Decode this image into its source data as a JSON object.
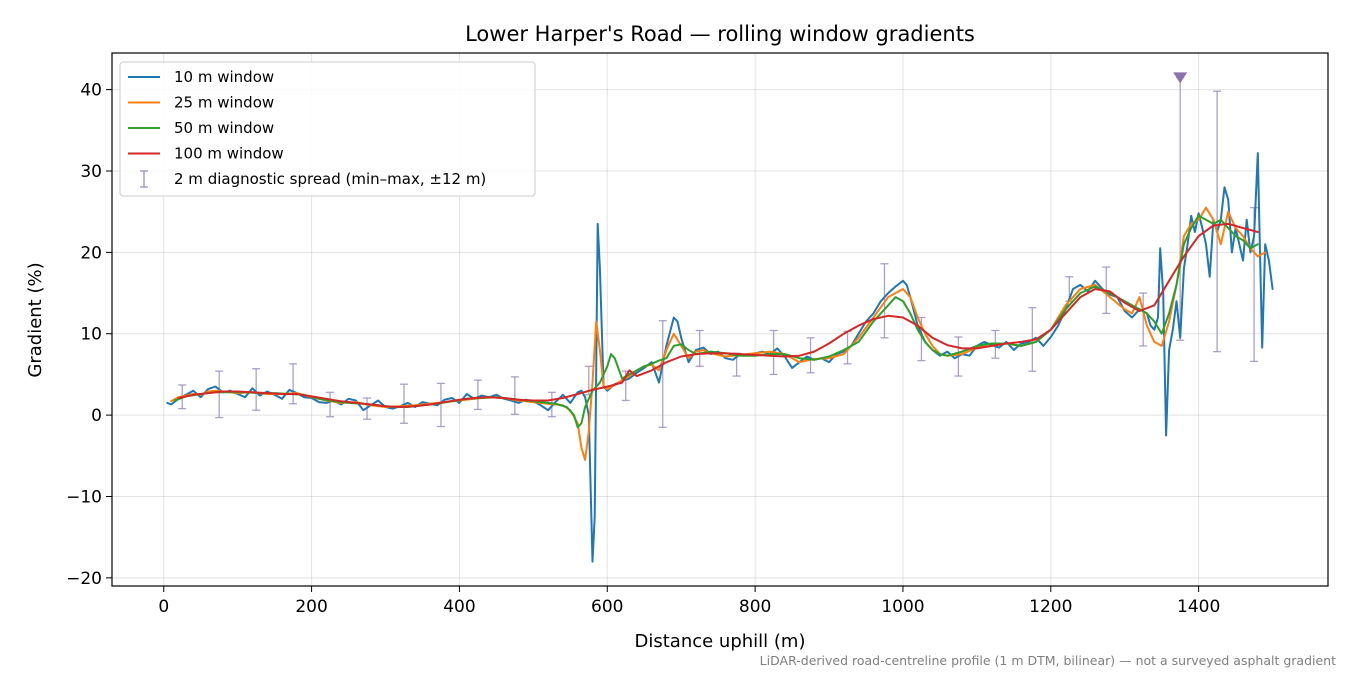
{
  "chart_data": {
    "type": "line",
    "title": "Lower Harper's Road — rolling window gradients",
    "xlabel": "Distance uphill (m)",
    "ylabel": "Gradient (%)",
    "xlim": [
      -70,
      1575
    ],
    "ylim": [
      -21,
      44.5
    ],
    "xticks": [
      0,
      200,
      400,
      600,
      800,
      1000,
      1200,
      1400
    ],
    "yticks": [
      -20,
      -10,
      0,
      10,
      20,
      30,
      40
    ],
    "ytick_labels": [
      "−20",
      "−10",
      "0",
      "10",
      "20",
      "30",
      "40"
    ],
    "grid": true,
    "legend_position": "upper-left",
    "footnote": "LiDAR-derived road-centreline profile (1 m DTM, bilinear) — not a surveyed asphalt gradient",
    "series": [
      {
        "name": "10 m window",
        "color": "#1f77b4",
        "x": [
          5,
          10,
          20,
          30,
          40,
          50,
          60,
          70,
          80,
          90,
          100,
          110,
          120,
          130,
          140,
          150,
          160,
          170,
          180,
          190,
          200,
          210,
          220,
          230,
          240,
          250,
          260,
          270,
          280,
          290,
          300,
          310,
          320,
          330,
          340,
          350,
          360,
          370,
          380,
          390,
          400,
          410,
          420,
          430,
          440,
          450,
          460,
          470,
          480,
          490,
          500,
          510,
          520,
          530,
          540,
          550,
          560,
          565,
          570,
          575,
          580,
          583,
          587,
          590,
          595,
          600,
          610,
          620,
          630,
          640,
          650,
          660,
          670,
          680,
          690,
          695,
          700,
          710,
          720,
          730,
          740,
          750,
          760,
          770,
          780,
          790,
          800,
          810,
          820,
          830,
          840,
          850,
          860,
          870,
          880,
          890,
          900,
          910,
          920,
          930,
          940,
          950,
          960,
          970,
          980,
          990,
          1000,
          1005,
          1010,
          1020,
          1030,
          1040,
          1050,
          1060,
          1070,
          1080,
          1090,
          1100,
          1110,
          1120,
          1130,
          1140,
          1150,
          1160,
          1170,
          1180,
          1190,
          1200,
          1210,
          1220,
          1230,
          1240,
          1250,
          1260,
          1270,
          1280,
          1290,
          1300,
          1310,
          1320,
          1330,
          1335,
          1340,
          1345,
          1348,
          1352,
          1356,
          1360,
          1365,
          1370,
          1375,
          1380,
          1385,
          1390,
          1395,
          1400,
          1405,
          1410,
          1415,
          1420,
          1425,
          1430,
          1435,
          1440,
          1445,
          1450,
          1455,
          1460,
          1465,
          1470,
          1475,
          1480,
          1483,
          1486,
          1490,
          1495,
          1500
        ],
        "values": [
          1.5,
          1.3,
          2.0,
          2.5,
          3.0,
          2.2,
          3.2,
          3.5,
          2.8,
          3.0,
          2.6,
          2.2,
          3.3,
          2.4,
          2.9,
          2.5,
          2.0,
          3.1,
          2.7,
          2.2,
          2.1,
          1.6,
          1.5,
          1.8,
          1.3,
          2.0,
          1.8,
          0.6,
          1.2,
          1.8,
          1.0,
          0.8,
          1.1,
          1.5,
          1.0,
          1.6,
          1.4,
          1.2,
          1.9,
          2.1,
          1.5,
          2.6,
          2.0,
          2.4,
          2.2,
          2.5,
          2.0,
          1.8,
          1.5,
          1.9,
          1.7,
          1.2,
          0.6,
          1.6,
          2.5,
          1.5,
          2.8,
          3.0,
          2.2,
          0.0,
          -18.0,
          -12.5,
          23.5,
          18.0,
          3.5,
          3.0,
          3.8,
          4.2,
          4.5,
          5.2,
          5.8,
          6.5,
          4.0,
          8.5,
          12.0,
          11.5,
          9.5,
          6.5,
          8.0,
          8.3,
          7.5,
          7.8,
          7.0,
          6.8,
          7.5,
          7.3,
          7.6,
          7.8,
          7.5,
          8.2,
          7.2,
          5.8,
          6.5,
          7.2,
          6.8,
          7.0,
          6.5,
          7.5,
          7.8,
          8.5,
          10.0,
          11.5,
          12.5,
          14.0,
          15.0,
          15.8,
          16.5,
          16.0,
          14.5,
          11.0,
          9.0,
          8.0,
          7.3,
          7.8,
          7.0,
          7.5,
          7.3,
          8.5,
          9.0,
          8.6,
          8.3,
          9.0,
          8.0,
          8.8,
          9.0,
          9.5,
          8.5,
          9.6,
          11.0,
          13.0,
          15.5,
          16.0,
          15.2,
          16.5,
          15.5,
          14.8,
          14.5,
          12.8,
          12.0,
          13.0,
          12.5,
          11.0,
          10.5,
          12.0,
          20.5,
          15.0,
          -2.5,
          8.0,
          10.5,
          14.0,
          9.5,
          18.0,
          21.0,
          24.5,
          22.5,
          24.8,
          23.0,
          21.0,
          17.0,
          24.0,
          22.5,
          24.0,
          28.0,
          26.5,
          20.0,
          23.0,
          21.0,
          19.0,
          24.0,
          20.0,
          22.0,
          32.2,
          20.0,
          8.3,
          21.0,
          19.0,
          15.5
        ]
      },
      {
        "name": "25 m window",
        "color": "#ff7f0e",
        "x": [
          10,
          20,
          30,
          40,
          50,
          60,
          70,
          80,
          90,
          100,
          120,
          140,
          160,
          180,
          200,
          220,
          240,
          260,
          280,
          300,
          320,
          340,
          360,
          380,
          400,
          420,
          440,
          460,
          480,
          500,
          520,
          540,
          550,
          560,
          565,
          570,
          575,
          580,
          585,
          590,
          595,
          600,
          610,
          620,
          630,
          640,
          650,
          660,
          670,
          680,
          690,
          700,
          710,
          720,
          730,
          740,
          760,
          780,
          800,
          820,
          840,
          860,
          880,
          900,
          920,
          940,
          960,
          980,
          1000,
          1010,
          1020,
          1030,
          1040,
          1050,
          1060,
          1080,
          1100,
          1120,
          1140,
          1160,
          1180,
          1200,
          1220,
          1240,
          1260,
          1280,
          1300,
          1310,
          1320,
          1330,
          1340,
          1350,
          1360,
          1370,
          1380,
          1390,
          1400,
          1410,
          1420,
          1430,
          1440,
          1450,
          1460,
          1470,
          1480,
          1490
        ],
        "values": [
          1.7,
          2.2,
          2.4,
          2.6,
          2.5,
          2.9,
          3.0,
          2.9,
          2.8,
          2.7,
          2.8,
          2.6,
          2.6,
          2.7,
          2.2,
          1.8,
          1.5,
          1.6,
          1.2,
          1.0,
          1.1,
          1.2,
          1.4,
          1.6,
          1.8,
          2.0,
          2.2,
          2.1,
          1.8,
          1.6,
          1.4,
          1.2,
          0.6,
          -1.0,
          -4.0,
          -5.5,
          -2.0,
          4.0,
          11.5,
          8.0,
          3.5,
          3.2,
          3.7,
          4.3,
          4.8,
          5.5,
          6.0,
          6.2,
          5.5,
          8.0,
          10.0,
          8.5,
          7.0,
          7.8,
          8.0,
          7.6,
          7.2,
          7.4,
          7.6,
          7.8,
          7.5,
          6.5,
          6.9,
          7.0,
          7.5,
          9.5,
          12.0,
          14.5,
          15.5,
          14.5,
          12.0,
          10.0,
          8.5,
          7.5,
          7.3,
          7.5,
          8.3,
          8.5,
          8.8,
          8.5,
          9.0,
          10.5,
          13.5,
          15.5,
          16.0,
          14.5,
          13.0,
          12.5,
          14.5,
          11.0,
          9.0,
          8.5,
          11.5,
          16.0,
          22.0,
          23.5,
          24.0,
          25.5,
          24.0,
          21.0,
          25.0,
          23.0,
          22.0,
          20.5,
          19.5,
          20.0
        ]
      },
      {
        "name": "50 m window",
        "color": "#2ca02c",
        "x": [
          15,
          30,
          50,
          70,
          90,
          110,
          130,
          150,
          170,
          190,
          210,
          230,
          250,
          270,
          290,
          310,
          330,
          350,
          370,
          390,
          410,
          430,
          450,
          470,
          490,
          510,
          530,
          545,
          555,
          560,
          565,
          570,
          580,
          590,
          600,
          605,
          610,
          620,
          630,
          640,
          650,
          660,
          670,
          680,
          690,
          700,
          710,
          720,
          740,
          760,
          780,
          800,
          820,
          840,
          860,
          880,
          900,
          920,
          940,
          960,
          980,
          990,
          1000,
          1010,
          1020,
          1030,
          1040,
          1050,
          1060,
          1080,
          1100,
          1120,
          1140,
          1160,
          1180,
          1200,
          1220,
          1240,
          1260,
          1280,
          1300,
          1310,
          1320,
          1330,
          1340,
          1350,
          1360,
          1370,
          1380,
          1390,
          1400,
          1410,
          1420,
          1430,
          1440,
          1450,
          1460,
          1470,
          1480
        ],
        "values": [
          1.8,
          2.3,
          2.6,
          2.8,
          2.8,
          2.8,
          2.7,
          2.7,
          2.6,
          2.5,
          2.0,
          1.7,
          1.5,
          1.4,
          1.2,
          1.0,
          1.0,
          1.2,
          1.4,
          1.7,
          2.0,
          2.1,
          2.2,
          2.0,
          1.8,
          1.6,
          1.4,
          1.0,
          0.0,
          -1.5,
          -1.0,
          1.0,
          3.0,
          4.0,
          6.0,
          7.5,
          7.0,
          4.5,
          5.0,
          5.5,
          6.0,
          6.3,
          6.7,
          7.0,
          8.5,
          8.7,
          8.0,
          7.5,
          7.8,
          7.6,
          7.3,
          7.3,
          7.5,
          7.5,
          7.0,
          6.8,
          7.2,
          8.0,
          9.0,
          11.5,
          13.5,
          14.5,
          14.0,
          12.5,
          10.5,
          9.0,
          8.0,
          7.5,
          7.3,
          7.8,
          8.5,
          8.8,
          8.8,
          8.5,
          9.0,
          10.5,
          13.0,
          15.0,
          15.8,
          15.0,
          14.0,
          13.5,
          13.0,
          12.5,
          11.5,
          10.0,
          12.5,
          16.0,
          21.0,
          23.0,
          24.5,
          24.0,
          23.5,
          24.0,
          23.0,
          22.0,
          21.5,
          20.5,
          21.0
        ]
      },
      {
        "name": "100 m window",
        "color": "#d62728",
        "x": [
          20,
          40,
          60,
          80,
          100,
          120,
          140,
          160,
          180,
          200,
          220,
          240,
          260,
          280,
          300,
          320,
          340,
          360,
          380,
          400,
          420,
          440,
          460,
          480,
          500,
          520,
          540,
          560,
          580,
          600,
          620,
          630,
          640,
          660,
          680,
          700,
          720,
          740,
          760,
          780,
          800,
          820,
          840,
          860,
          880,
          900,
          920,
          940,
          960,
          980,
          1000,
          1020,
          1040,
          1060,
          1080,
          1100,
          1120,
          1140,
          1160,
          1180,
          1200,
          1220,
          1240,
          1260,
          1280,
          1300,
          1320,
          1340,
          1360,
          1380,
          1400,
          1420,
          1440,
          1460,
          1480
        ],
        "values": [
          2.1,
          2.5,
          2.7,
          2.9,
          2.9,
          2.8,
          2.7,
          2.6,
          2.6,
          2.3,
          2.0,
          1.7,
          1.5,
          1.3,
          1.1,
          1.0,
          1.1,
          1.3,
          1.6,
          1.9,
          2.1,
          2.2,
          2.1,
          1.9,
          1.8,
          1.8,
          2.1,
          2.6,
          3.1,
          3.5,
          4.0,
          5.5,
          4.8,
          5.5,
          6.5,
          7.2,
          7.5,
          7.6,
          7.6,
          7.5,
          7.4,
          7.3,
          7.2,
          7.3,
          7.8,
          8.8,
          10.0,
          11.0,
          11.8,
          12.2,
          12.0,
          11.0,
          9.5,
          8.6,
          8.2,
          8.2,
          8.5,
          8.8,
          9.0,
          9.3,
          10.5,
          12.5,
          14.5,
          15.5,
          15.2,
          13.8,
          12.8,
          13.5,
          16.5,
          19.5,
          22.0,
          23.3,
          23.5,
          23.0,
          22.5
        ]
      },
      {
        "name": "2 m diagnostic spread (min–max, ±12 m)",
        "type": "errorbar",
        "color": "#9e8fbd",
        "x": [
          25,
          75,
          125,
          175,
          225,
          275,
          325,
          375,
          425,
          475,
          525,
          575,
          625,
          675,
          725,
          775,
          825,
          875,
          925,
          975,
          1025,
          1075,
          1125,
          1175,
          1225,
          1275,
          1325,
          1375,
          1425,
          1475
        ],
        "low": [
          0.8,
          -0.3,
          0.6,
          1.4,
          -0.2,
          -0.5,
          -1.0,
          -1.4,
          0.7,
          0.1,
          -0.2,
          2.5,
          1.8,
          -1.5,
          6.0,
          4.8,
          5.0,
          5.2,
          6.3,
          9.5,
          6.7,
          4.8,
          7.0,
          5.4,
          14.0,
          12.5,
          8.5,
          9.2,
          7.8,
          6.6
        ],
        "high": [
          3.7,
          5.4,
          5.7,
          6.3,
          2.8,
          2.1,
          3.8,
          3.9,
          4.3,
          4.7,
          2.8,
          6.0,
          5.4,
          11.6,
          10.4,
          7.6,
          10.4,
          9.5,
          10.3,
          18.6,
          12.0,
          9.6,
          10.4,
          13.2,
          17.0,
          18.2,
          15.0,
          41.5,
          39.8,
          25.5
        ],
        "outlier_markers": [
          {
            "x": 1375,
            "y": 41.5
          }
        ]
      }
    ]
  }
}
